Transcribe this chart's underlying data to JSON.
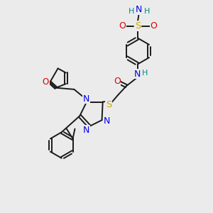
{
  "bg_color": "#ebebeb",
  "figsize": [
    3.0,
    3.0
  ],
  "dpi": 100,
  "atom_colors": {
    "C": "#1a1a1a",
    "N": "#0000ee",
    "O": "#dd0000",
    "S": "#ccaa00",
    "H": "#008888",
    "default": "#1a1a1a"
  },
  "bond_color": "#1a1a1a",
  "bond_width": 1.4,
  "font_size": 7.5
}
